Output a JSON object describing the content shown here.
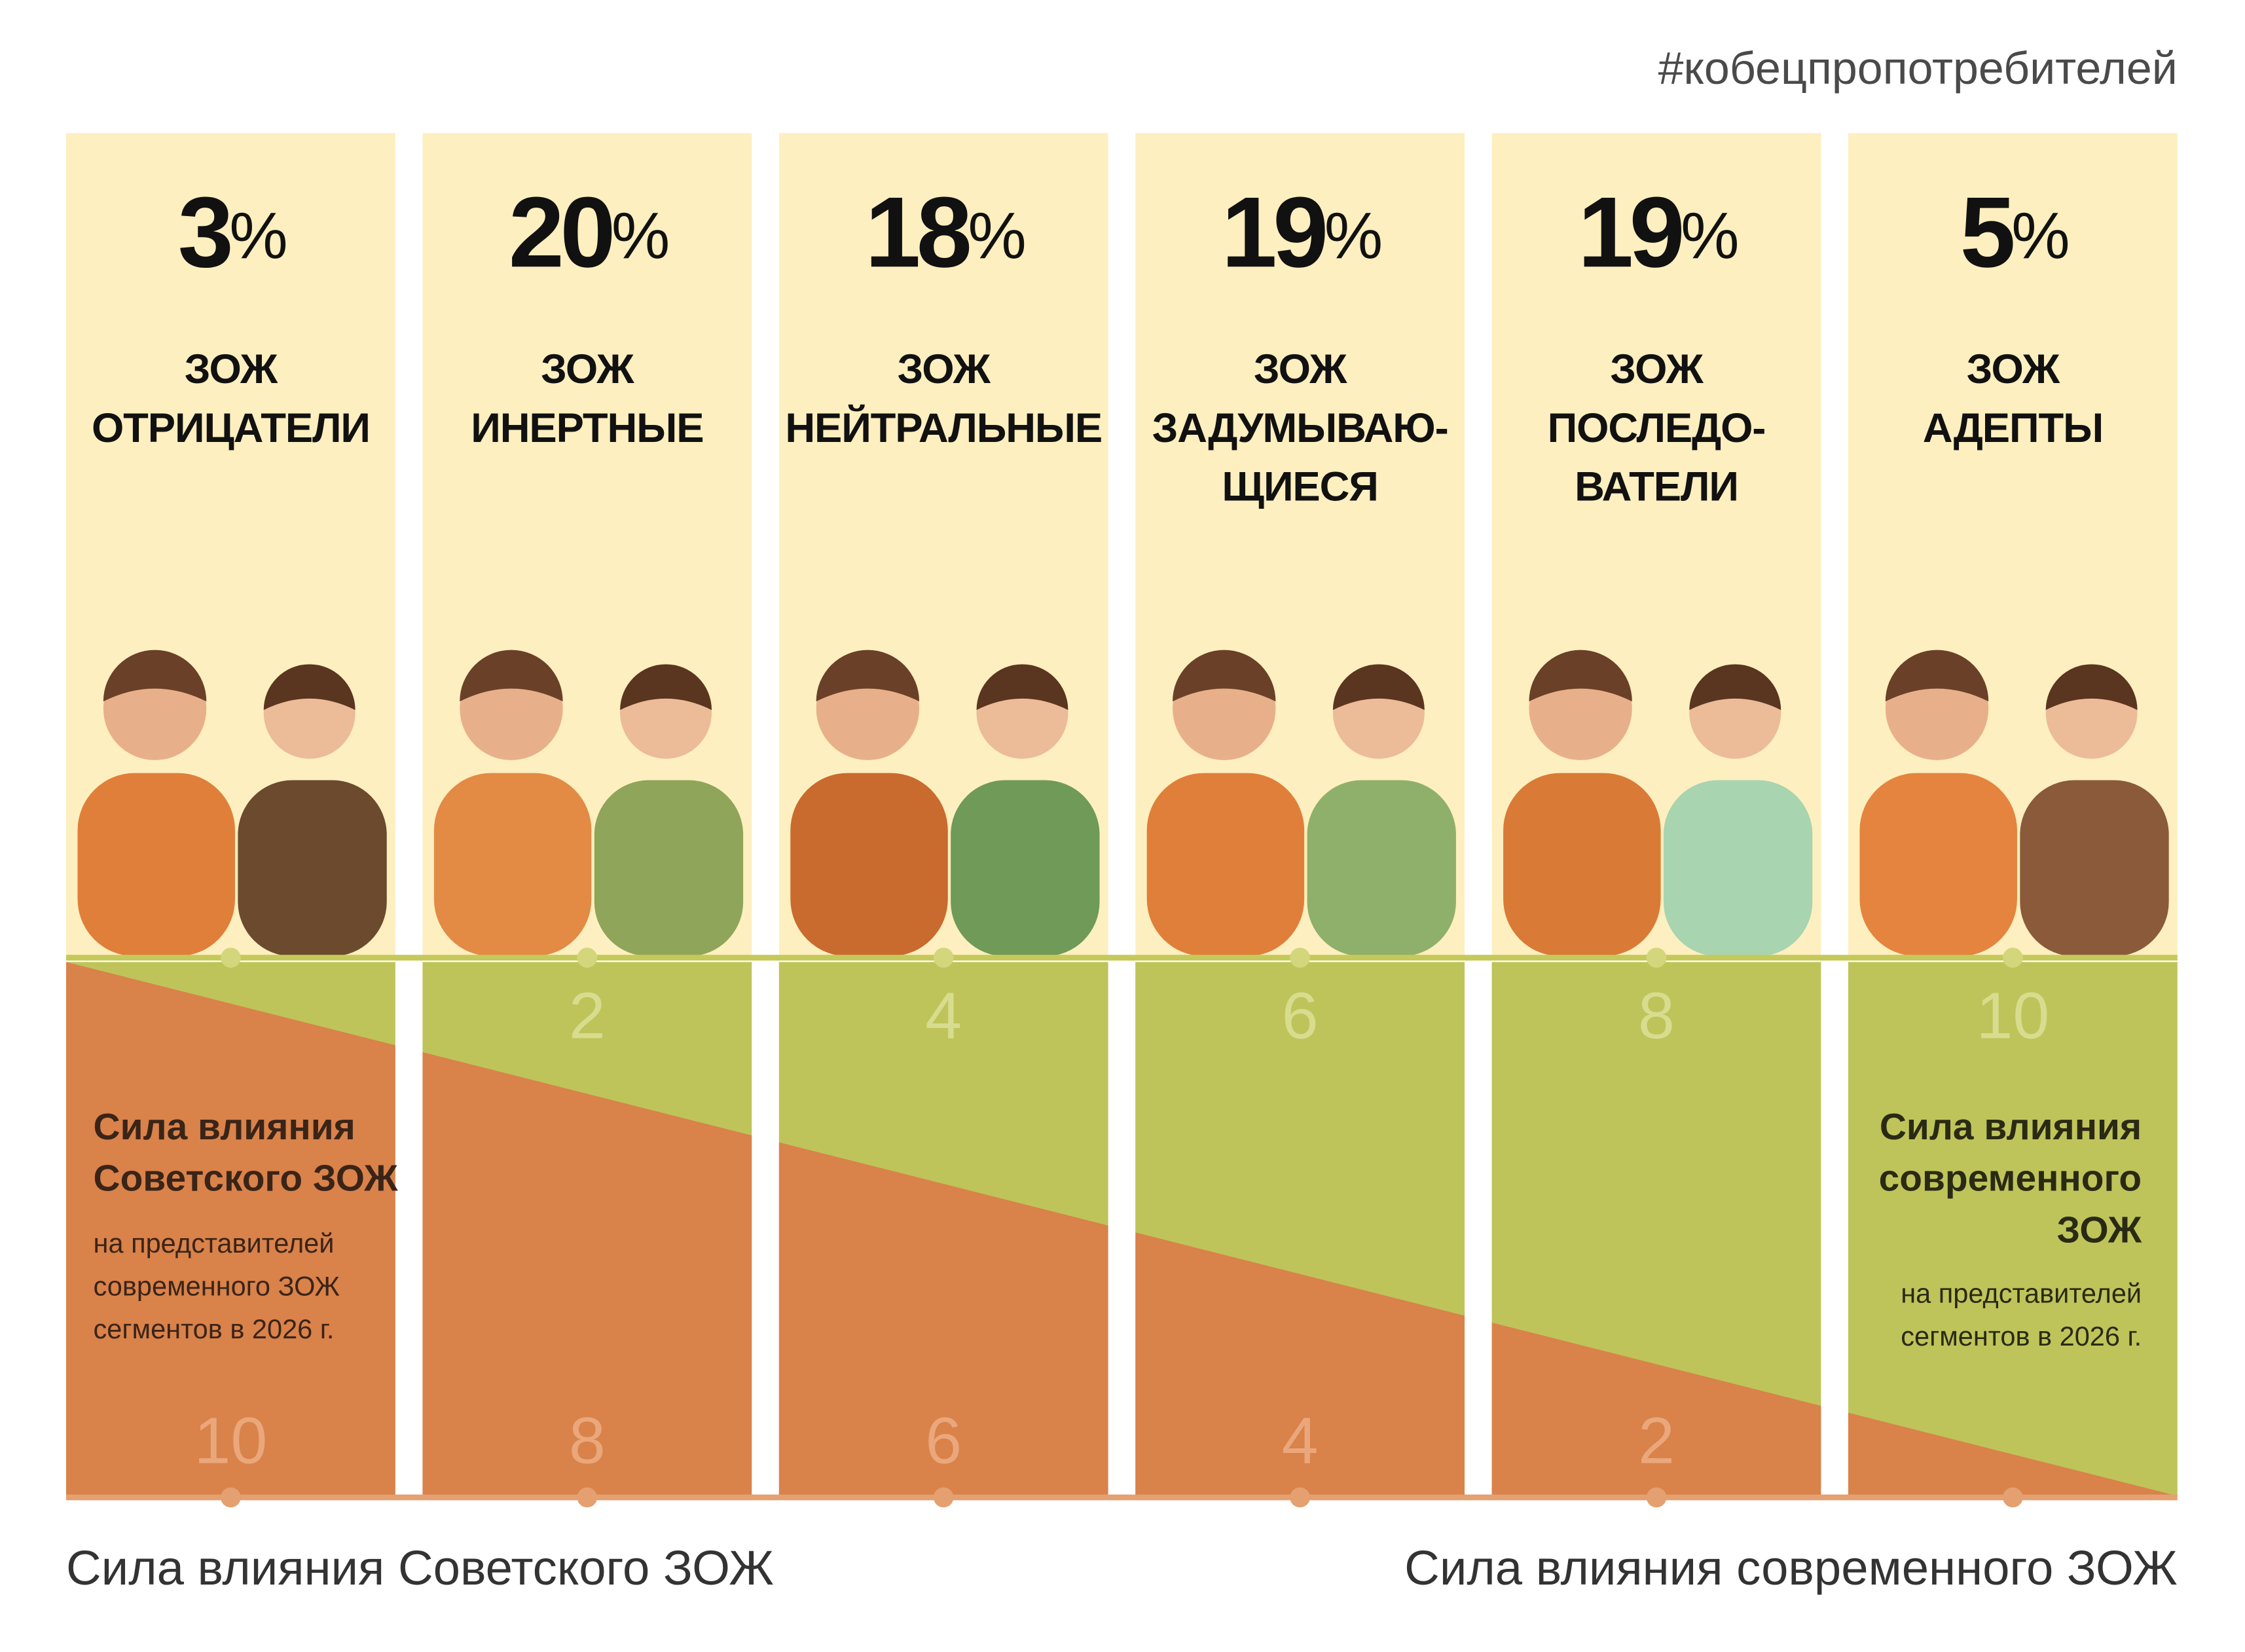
{
  "hashtag": "#кобецпропотребителей",
  "segments": [
    {
      "percent": "3%",
      "name": [
        "ЗОЖ",
        "ОТРИЦАТЕЛИ"
      ],
      "soviet_scale": 10
    },
    {
      "percent": "20%",
      "name": [
        "ЗОЖ",
        "ИНЕРТНЫЕ"
      ],
      "modern_scale": 2,
      "soviet_scale": 8
    },
    {
      "percent": "18%",
      "name": [
        "ЗОЖ",
        "НЕЙТРАЛЬНЫЕ"
      ],
      "modern_scale": 4,
      "soviet_scale": 6
    },
    {
      "percent": "19%",
      "name": [
        "ЗОЖ",
        "ЗАДУМЫВАЮ-",
        "ЩИЕСЯ"
      ],
      "modern_scale": 6,
      "soviet_scale": 4
    },
    {
      "percent": "19%",
      "name": [
        "ЗОЖ",
        "ПОСЛЕДО-",
        "ВАТЕЛИ"
      ],
      "modern_scale": 8,
      "soviet_scale": 2
    },
    {
      "percent": "5%",
      "name": [
        "ЗОЖ",
        "АДЕПТЫ"
      ],
      "modern_scale": 10
    }
  ],
  "soviet_note": {
    "title": [
      "Сила влияния",
      "Советского ЗОЖ"
    ],
    "body": [
      "на представителей",
      "современного ЗОЖ",
      "сегментов в 2026 г."
    ]
  },
  "modern_note": {
    "title": [
      "Сила влияния",
      "современного",
      "ЗОЖ"
    ],
    "body": [
      "на представителей",
      "сегментов в 2026 г."
    ]
  },
  "axis": {
    "left": "Сила влияния Советского ЗОЖ",
    "right": "Сила влияния современного ЗОЖ"
  }
}
